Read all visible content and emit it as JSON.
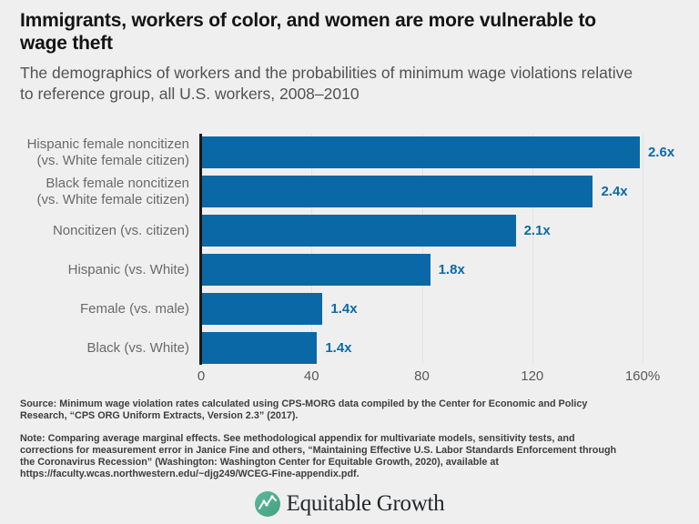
{
  "header": {
    "title_lines": [
      "Immigrants, workers of color, and women are more vulnerable to",
      "wage theft"
    ],
    "subtitle_lines": [
      "The demographics of workers and the probabilities of minimum wage violations relative",
      "to reference group, all U.S. workers, 2008–2010"
    ]
  },
  "chart_data": {
    "type": "bar",
    "orientation": "horizontal",
    "title": "Immigrants, workers of color, and women are more vulnerable to wage theft",
    "subtitle": "The demographics of workers and the probabilities of minimum wage violations relative to reference group, all U.S. workers, 2008–2010",
    "categories": [
      [
        "Hispanic female noncitizen",
        "(vs. White female citizen)"
      ],
      [
        "Black female noncitizen",
        "(vs. White female citizen)"
      ],
      [
        "Noncitizen (vs. citizen)"
      ],
      [
        "Hispanic (vs. White)"
      ],
      [
        "Female (vs. male)"
      ],
      [
        "Black (vs. White)"
      ]
    ],
    "value_labels": [
      "2.6x",
      "2.4x",
      "2.1x",
      "1.8x",
      "1.4x",
      "1.4x"
    ],
    "values_percent": [
      159,
      142,
      114,
      83,
      44,
      42
    ],
    "xlabel": "",
    "ylabel": "",
    "xlim": [
      0,
      160
    ],
    "xticks": [
      0,
      40,
      80,
      120,
      160
    ],
    "xtick_labels": [
      "0",
      "40",
      "80",
      "120",
      "160%"
    ],
    "grid": "vertical-gridlines-on",
    "legend": "none",
    "bar_color": "#0a68a6",
    "value_label_color": "#0a6aa9"
  },
  "footer": {
    "source_lines": [
      "Source: Minimum wage violation rates calculated using CPS-MORG data compiled by the Center for Economic and Policy",
      "Research, “CPS ORG Uniform Extracts, Version 2.3” (2017)."
    ],
    "note_lines": [
      "Note: Comparing average marginal effects. See methodological appendix for multivariate models, sensitivity tests, and",
      "corrections for measurement error in Janice Fine and others, “Maintaining Effective U.S. Labor Standards Enforcement through",
      "the Coronavirus Recession” (Washington: Washington Center for Equitable Growth, 2020), available at",
      "https://faculty.wcas.northwestern.edu/~djg249/WCEG-Fine-appendix.pdf."
    ],
    "logo_text": "Equitable Growth",
    "logo_icon": "line-chart-circle-icon",
    "logo_icon_color": "#4fae90"
  },
  "colors": {
    "background": "#efefef",
    "bar": "#0a68a6",
    "axis": "#1a1a1a",
    "gridline": "#e2e2e2",
    "title_text": "#141414",
    "subtitle_text": "#515254",
    "category_text": "#6a6a6a",
    "tick_text": "#58595b",
    "note_text": "#3e3e3e"
  }
}
